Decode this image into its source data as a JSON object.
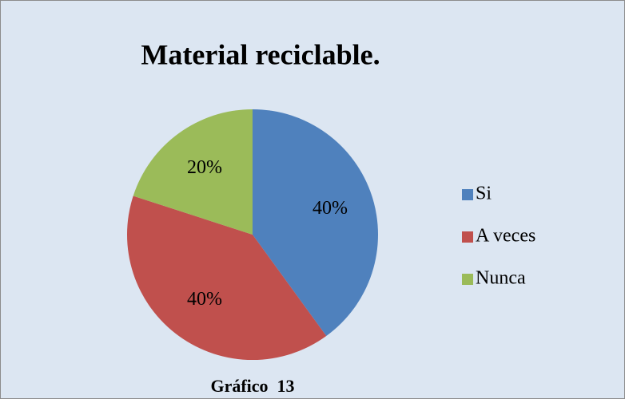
{
  "chart_data": {
    "type": "pie",
    "title": "Material reciclable.",
    "categories": [
      "Si",
      "A veces",
      "Nunca"
    ],
    "values": [
      40,
      40,
      20
    ],
    "value_labels": [
      "40%",
      "40%",
      "20%"
    ],
    "colors": [
      "#4f81bd",
      "#c0504d",
      "#9bbb59"
    ],
    "legend": "right",
    "caption": "Gráfico  13"
  }
}
